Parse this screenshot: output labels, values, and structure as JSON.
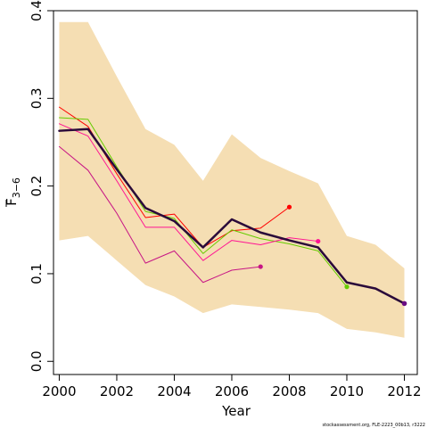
{
  "chart_data": {
    "type": "line",
    "title": "",
    "xlabel": "Year",
    "ylabel_main": "F",
    "ylabel_sub": "3−6",
    "xlim": [
      1999.8,
      2012.45
    ],
    "ylim": [
      -0.015,
      0.4
    ],
    "x_ticks": [
      2000,
      2002,
      2004,
      2006,
      2008,
      2010,
      2012
    ],
    "y_ticks": [
      0.0,
      0.1,
      0.2,
      0.3,
      0.4
    ],
    "y_tick_labels": [
      "0.0",
      "0.1",
      "0.2",
      "0.3",
      "0.4"
    ],
    "grid": false,
    "band": {
      "color": "#f5deb3",
      "x": [
        2000,
        2001,
        2002,
        2003,
        2004,
        2005,
        2006,
        2007,
        2008,
        2009,
        2010,
        2011,
        2012
      ],
      "upper": [
        0.387,
        0.387,
        0.325,
        0.265,
        0.247,
        0.206,
        0.259,
        0.232,
        0.217,
        0.203,
        0.143,
        0.133,
        0.106
      ],
      "lower": [
        0.138,
        0.143,
        0.115,
        0.087,
        0.074,
        0.055,
        0.065,
        0.062,
        0.059,
        0.055,
        0.037,
        0.033,
        0.027
      ]
    },
    "series": [
      {
        "color": "#ff0000",
        "width": 1,
        "x": [
          2000,
          2001,
          2002,
          2003,
          2004,
          2005,
          2006,
          2007,
          2008
        ],
        "y": [
          0.29,
          0.268,
          0.214,
          0.164,
          0.168,
          0.13,
          0.149,
          0.152,
          0.176
        ],
        "end_point": true
      },
      {
        "color": "#66cc00",
        "width": 1,
        "x": [
          2000,
          2001,
          2002,
          2003,
          2004,
          2005,
          2006,
          2007,
          2008,
          2009,
          2010
        ],
        "y": [
          0.278,
          0.276,
          0.222,
          0.171,
          0.163,
          0.123,
          0.15,
          0.14,
          0.134,
          0.126,
          0.085
        ],
        "end_point": true
      },
      {
        "color": "#ff1493",
        "width": 1,
        "x": [
          2000,
          2001,
          2002,
          2003,
          2004,
          2005,
          2006,
          2007,
          2008,
          2009
        ],
        "y": [
          0.271,
          0.257,
          0.206,
          0.153,
          0.153,
          0.115,
          0.138,
          0.133,
          0.141,
          0.137
        ],
        "end_point": true
      },
      {
        "color": "#c71585",
        "width": 1,
        "x": [
          2000,
          2001,
          2002,
          2003,
          2004,
          2005,
          2006,
          2007
        ],
        "y": [
          0.245,
          0.218,
          0.169,
          0.112,
          0.126,
          0.09,
          0.104,
          0.108
        ],
        "end_point": true
      },
      {
        "color": "#2a0a3a",
        "width": 2.5,
        "x": [
          2000,
          2001,
          2002,
          2003,
          2004,
          2005,
          2006,
          2007,
          2008,
          2009,
          2010,
          2011,
          2012
        ],
        "y": [
          0.263,
          0.265,
          0.219,
          0.175,
          0.16,
          0.13,
          0.162,
          0.147,
          0.138,
          0.13,
          0.09,
          0.083,
          0.066
        ],
        "end_point": false
      }
    ],
    "end_marker_final": {
      "x": 2012,
      "y": 0.066,
      "color": "#6a0d83"
    }
  },
  "footnote": "stockassessment.org, FLE-2223_00b13, r3222"
}
